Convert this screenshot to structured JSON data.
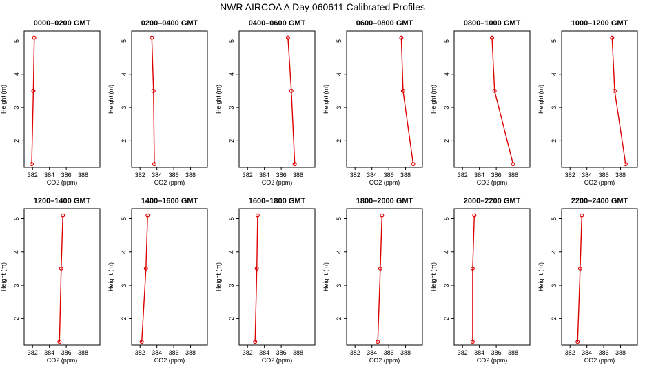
{
  "title": "NWR AIRCOA A  Day 060611  Calibrated Profiles",
  "colors": {
    "series": "#dd0000",
    "axis": "#000000"
  },
  "chart_data": [
    {
      "type": "line",
      "title": "0000–0200 GMT",
      "xlabel": "CO2 (ppm)",
      "ylabel": "Height (m)",
      "xlim": [
        381,
        390
      ],
      "ylim": [
        1.2,
        5.3
      ],
      "xticks": [
        382,
        384,
        386,
        388
      ],
      "yticks": [
        2,
        3,
        4,
        5
      ],
      "x": [
        381.9,
        382.1,
        382.2
      ],
      "y": [
        1.3,
        3.5,
        5.1
      ]
    },
    {
      "type": "line",
      "title": "0200–0400 GMT",
      "xlabel": "CO2 (ppm)",
      "ylabel": "Height (m)",
      "xlim": [
        381,
        390
      ],
      "ylim": [
        1.2,
        5.3
      ],
      "xticks": [
        382,
        384,
        386,
        388
      ],
      "yticks": [
        2,
        3,
        4,
        5
      ],
      "x": [
        383.7,
        383.6,
        383.4
      ],
      "y": [
        1.3,
        3.5,
        5.1
      ]
    },
    {
      "type": "line",
      "title": "0400–0600 GMT",
      "xlabel": "CO2 (ppm)",
      "ylabel": "Height (m)",
      "xlim": [
        381,
        390
      ],
      "ylim": [
        1.2,
        5.3
      ],
      "xticks": [
        382,
        384,
        386,
        388
      ],
      "yticks": [
        2,
        3,
        4,
        5
      ],
      "x": [
        387.6,
        387.2,
        386.8
      ],
      "y": [
        1.3,
        3.5,
        5.1
      ]
    },
    {
      "type": "line",
      "title": "0600–0800 GMT",
      "xlabel": "CO2 (ppm)",
      "ylabel": "Height (m)",
      "xlim": [
        381,
        390
      ],
      "ylim": [
        1.2,
        5.3
      ],
      "xticks": [
        382,
        384,
        386,
        388
      ],
      "yticks": [
        2,
        3,
        4,
        5
      ],
      "x": [
        388.9,
        387.7,
        387.5
      ],
      "y": [
        1.3,
        3.5,
        5.1
      ]
    },
    {
      "type": "line",
      "title": "0800–1000 GMT",
      "xlabel": "CO2 (ppm)",
      "ylabel": "Height (m)",
      "xlim": [
        381,
        390
      ],
      "ylim": [
        1.2,
        5.3
      ],
      "xticks": [
        382,
        384,
        386,
        388
      ],
      "yticks": [
        2,
        3,
        4,
        5
      ],
      "x": [
        388.0,
        385.8,
        385.5
      ],
      "y": [
        1.3,
        3.5,
        5.1
      ]
    },
    {
      "type": "line",
      "title": "1000–1200 GMT",
      "xlabel": "CO2 (ppm)",
      "ylabel": "Height (m)",
      "xlim": [
        381,
        390
      ],
      "ylim": [
        1.2,
        5.3
      ],
      "xticks": [
        382,
        384,
        386,
        388
      ],
      "yticks": [
        2,
        3,
        4,
        5
      ],
      "x": [
        388.6,
        387.3,
        387.0
      ],
      "y": [
        1.3,
        3.5,
        5.1
      ]
    },
    {
      "type": "line",
      "title": "1200–1400 GMT",
      "xlabel": "CO2 (ppm)",
      "ylabel": "Height (m)",
      "xlim": [
        381,
        390
      ],
      "ylim": [
        1.2,
        5.3
      ],
      "xticks": [
        382,
        384,
        386,
        388
      ],
      "yticks": [
        2,
        3,
        4,
        5
      ],
      "x": [
        385.2,
        385.4,
        385.6
      ],
      "y": [
        1.3,
        3.5,
        5.1
      ]
    },
    {
      "type": "line",
      "title": "1400–1600 GMT",
      "xlabel": "CO2 (ppm)",
      "ylabel": "Height (m)",
      "xlim": [
        381,
        390
      ],
      "ylim": [
        1.2,
        5.3
      ],
      "xticks": [
        382,
        384,
        386,
        388
      ],
      "yticks": [
        2,
        3,
        4,
        5
      ],
      "x": [
        382.2,
        382.7,
        382.9
      ],
      "y": [
        1.3,
        3.5,
        5.1
      ]
    },
    {
      "type": "line",
      "title": "1600–1800 GMT",
      "xlabel": "CO2 (ppm)",
      "ylabel": "Height (m)",
      "xlim": [
        381,
        390
      ],
      "ylim": [
        1.2,
        5.3
      ],
      "xticks": [
        382,
        384,
        386,
        388
      ],
      "yticks": [
        2,
        3,
        4,
        5
      ],
      "x": [
        382.9,
        383.1,
        383.2
      ],
      "y": [
        1.3,
        3.5,
        5.1
      ]
    },
    {
      "type": "line",
      "title": "1800–2000 GMT",
      "xlabel": "CO2 (ppm)",
      "ylabel": "Height (m)",
      "xlim": [
        381,
        390
      ],
      "ylim": [
        1.2,
        5.3
      ],
      "xticks": [
        382,
        384,
        386,
        388
      ],
      "yticks": [
        2,
        3,
        4,
        5
      ],
      "x": [
        384.7,
        385.0,
        385.2
      ],
      "y": [
        1.3,
        3.5,
        5.1
      ]
    },
    {
      "type": "line",
      "title": "2000–2200 GMT",
      "xlabel": "CO2 (ppm)",
      "ylabel": "Height (m)",
      "xlim": [
        381,
        390
      ],
      "ylim": [
        1.2,
        5.3
      ],
      "xticks": [
        382,
        384,
        386,
        388
      ],
      "yticks": [
        2,
        3,
        4,
        5
      ],
      "x": [
        383.2,
        383.2,
        383.4
      ],
      "y": [
        1.3,
        3.5,
        5.1
      ]
    },
    {
      "type": "line",
      "title": "2200–2400 GMT",
      "xlabel": "CO2 (ppm)",
      "ylabel": "Height (m)",
      "xlim": [
        381,
        390
      ],
      "ylim": [
        1.2,
        5.3
      ],
      "xticks": [
        382,
        384,
        386,
        388
      ],
      "yticks": [
        2,
        3,
        4,
        5
      ],
      "x": [
        382.9,
        383.2,
        383.4
      ],
      "y": [
        1.3,
        3.5,
        5.1
      ]
    }
  ]
}
